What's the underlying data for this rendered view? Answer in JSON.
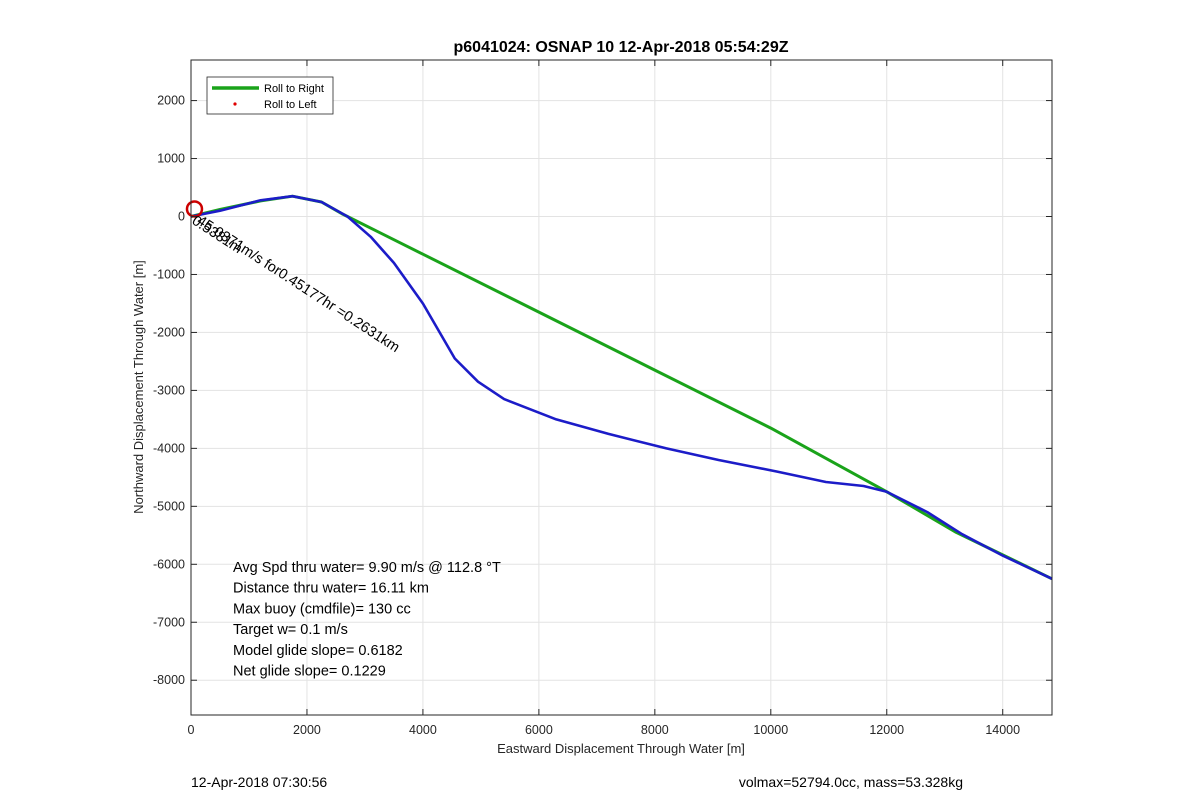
{
  "chart_data": {
    "type": "line",
    "title": "p6041024: OSNAP 10 12-Apr-2018 05:54:29Z",
    "xlabel": "Eastward Displacement Through Water [m]",
    "ylabel": "Northward Displacement Through Water [m]",
    "xlim": [
      0,
      14850
    ],
    "ylim": [
      -8600,
      2700
    ],
    "xticks": [
      0,
      2000,
      4000,
      6000,
      8000,
      10000,
      12000,
      14000
    ],
    "yticks": [
      -8000,
      -7000,
      -6000,
      -5000,
      -4000,
      -3000,
      -2000,
      -1000,
      0,
      1000,
      2000
    ],
    "grid": true,
    "legend_position": "top-left",
    "series": [
      {
        "name": "Roll to Right",
        "color": "#1aa31a",
        "x": [
          0,
          500,
          1200,
          1750,
          2250,
          2600,
          4000,
          6000,
          8000,
          10000,
          12000,
          13200,
          14850
        ],
        "y": [
          0,
          120,
          270,
          350,
          250,
          50,
          -650,
          -1650,
          -2650,
          -3650,
          -4750,
          -5450,
          -6250
        ]
      },
      {
        "name": "Roll to Left",
        "color": "#e00000",
        "marker": "dot",
        "x": [],
        "y": []
      },
      {
        "name": "",
        "color": "#1c1cc8",
        "x": [
          0,
          500,
          1200,
          1750,
          2250,
          2700,
          3100,
          3500,
          4000,
          4550,
          4950,
          5400,
          6300,
          7200,
          8200,
          9100,
          10100,
          10950,
          11600,
          12000,
          12700,
          13300,
          14000,
          14850
        ],
        "y": [
          0,
          100,
          280,
          350,
          250,
          0,
          -350,
          -800,
          -1500,
          -2450,
          -2850,
          -3150,
          -3500,
          -3750,
          -4000,
          -4200,
          -4400,
          -4580,
          -4650,
          -4750,
          -5100,
          -5480,
          -5850,
          -6250
        ]
      }
    ],
    "marker_circle": {
      "x": 60,
      "y": 130,
      "color": "#cc0000"
    },
    "overlap_text": "45.0371m/s for0.45177hr =0.2631km",
    "overlap_text_dup": "0.5381m",
    "annotations": [
      "Avg Spd thru water=  9.90 m/s @ 112.8 °T",
      "Distance thru water= 16.11 km",
      "Max buoy (cmdfile)= 130 cc",
      "Target w= 0.1 m/s",
      "Model glide slope= 0.6182",
      "Net glide slope= 0.1229"
    ]
  },
  "footer": {
    "left": "12-Apr-2018 07:30:56",
    "right": "volmax=52794.0cc, mass=53.328kg"
  }
}
